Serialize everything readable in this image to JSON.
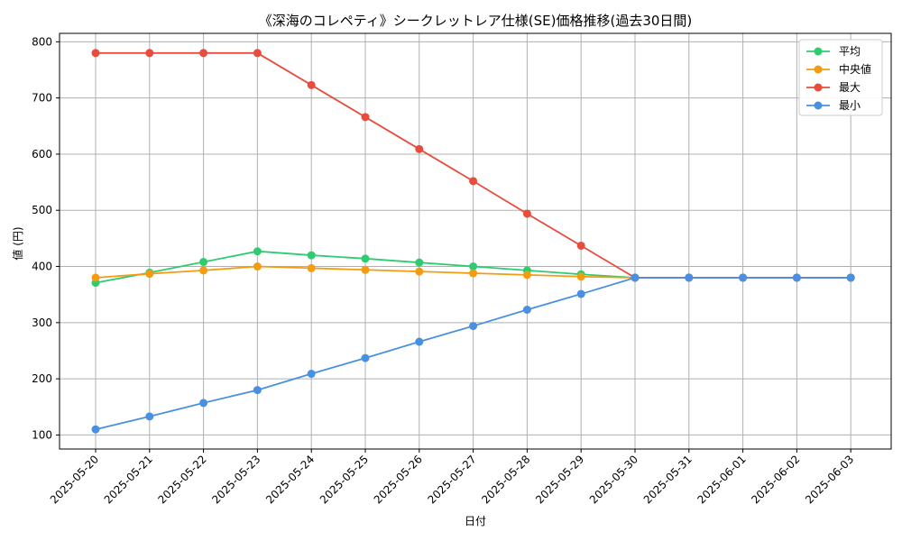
{
  "chart_data": {
    "type": "line",
    "title": "《深海のコレペティ》シークレットレア仕様(SE)価格推移(過去30日間)",
    "xlabel": "日付",
    "ylabel": "値 (円)",
    "categories": [
      "2025-05-20",
      "2025-05-21",
      "2025-05-22",
      "2025-05-23",
      "2025-05-24",
      "2025-05-25",
      "2025-05-26",
      "2025-05-27",
      "2025-05-28",
      "2025-05-29",
      "2025-05-30",
      "2025-05-31",
      "2025-06-01",
      "2025-06-02",
      "2025-06-03"
    ],
    "ylim": [
      75,
      815
    ],
    "yticks": [
      100,
      200,
      300,
      400,
      500,
      600,
      700,
      800
    ],
    "grid": true,
    "legend_position": "top-right",
    "series": [
      {
        "name": "平均",
        "color": "#2ecc71",
        "values": [
          371,
          389,
          408,
          427,
          420,
          414,
          407,
          400,
          393,
          386,
          380,
          380,
          380,
          380,
          380
        ]
      },
      {
        "name": "中央値",
        "color": "#f39c12",
        "values": [
          380,
          387,
          393,
          400,
          397,
          394,
          391,
          388,
          385,
          382,
          380,
          380,
          380,
          380,
          380
        ]
      },
      {
        "name": "最大",
        "color": "#e74c3c",
        "values": [
          780,
          780,
          780,
          780,
          723,
          666,
          609,
          552,
          494,
          437,
          380,
          380,
          380,
          380,
          380
        ]
      },
      {
        "name": "最小",
        "color": "#4a90e2",
        "values": [
          110,
          133,
          157,
          180,
          209,
          237,
          266,
          294,
          323,
          351,
          380,
          380,
          380,
          380,
          380
        ]
      }
    ]
  }
}
